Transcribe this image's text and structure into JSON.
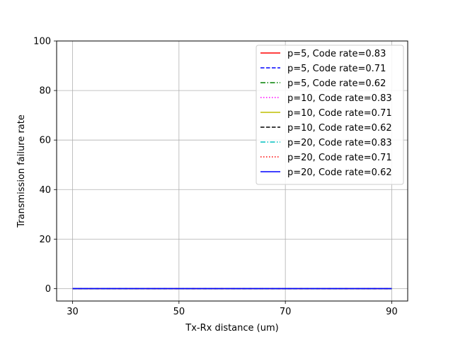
{
  "chart_data": {
    "type": "line",
    "title": "",
    "xlabel": "Tx-Rx distance (um)",
    "ylabel": "Transmission failure rate",
    "xlim": [
      27,
      93
    ],
    "ylim": [
      -5,
      100
    ],
    "xticks": [
      30,
      50,
      70,
      90
    ],
    "yticks": [
      0,
      20,
      40,
      60,
      80,
      100
    ],
    "grid": true,
    "legend_position": "top-right",
    "x": [
      30,
      40,
      50,
      60,
      70,
      80,
      90
    ],
    "series": [
      {
        "name": "p=5, Code rate=0.83",
        "color": "#ff0000",
        "dash": "solid",
        "values": [
          0,
          0,
          0,
          0,
          0,
          0,
          0
        ]
      },
      {
        "name": "p=5, Code rate=0.71",
        "color": "#0000ff",
        "dash": "dashed",
        "values": [
          0,
          0,
          0,
          0,
          0,
          0,
          0
        ]
      },
      {
        "name": "p=5, Code rate=0.62",
        "color": "#008000",
        "dash": "dashdot",
        "values": [
          0,
          0,
          0,
          0,
          0,
          0,
          0
        ]
      },
      {
        "name": "p=10, Code rate=0.83",
        "color": "#ff00ff",
        "dash": "dotted",
        "values": [
          0,
          0,
          0,
          0,
          0,
          0,
          0
        ]
      },
      {
        "name": "p=10, Code rate=0.71",
        "color": "#bfbf00",
        "dash": "solid",
        "values": [
          0,
          0,
          0,
          0,
          0,
          0,
          0
        ]
      },
      {
        "name": "p=10, Code rate=0.62",
        "color": "#000000",
        "dash": "dashed",
        "values": [
          0,
          0,
          0,
          0,
          0,
          0,
          0
        ]
      },
      {
        "name": "p=20, Code rate=0.83",
        "color": "#00bfbf",
        "dash": "dashdot",
        "values": [
          0,
          0,
          0,
          0,
          0,
          0,
          0
        ]
      },
      {
        "name": "p=20, Code rate=0.71",
        "color": "#ff0000",
        "dash": "dotted",
        "values": [
          0,
          0,
          0,
          0,
          0,
          0,
          0
        ]
      },
      {
        "name": "p=20, Code rate=0.62",
        "color": "#0000ff",
        "dash": "solid",
        "values": [
          0,
          0,
          0,
          0,
          0,
          0,
          0
        ]
      }
    ]
  }
}
